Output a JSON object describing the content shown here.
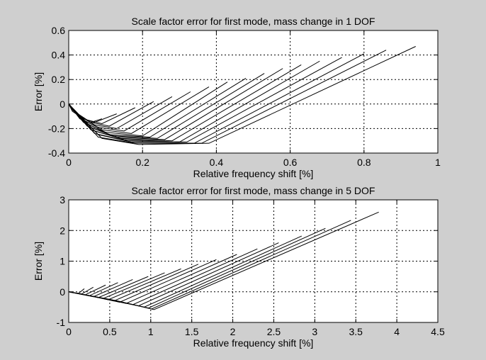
{
  "chart_data": [
    {
      "type": "line",
      "title": "Scale factor error for first mode, mass change in 1 DOF",
      "xlabel": "Relative frequency shift [%]",
      "ylabel": "Error [%]",
      "xlim": [
        0,
        1
      ],
      "ylim": [
        -0.4,
        0.6
      ],
      "xticks": [
        0,
        0.2,
        0.4,
        0.6,
        0.8,
        1
      ],
      "yticks": [
        -0.4,
        -0.2,
        0,
        0.2,
        0.4,
        0.6
      ],
      "grid": true,
      "curve_count": 17,
      "series_points": [
        [
          [
            0,
            0
          ],
          [
            0.01,
            -0.05
          ],
          [
            0.03,
            -0.1
          ],
          [
            0.06,
            -0.15
          ],
          [
            0.09,
            -0.12
          ]
        ],
        [
          [
            0,
            0
          ],
          [
            0.01,
            -0.06
          ],
          [
            0.04,
            -0.12
          ],
          [
            0.07,
            -0.15
          ],
          [
            0.13,
            -0.08
          ]
        ],
        [
          [
            0,
            0
          ],
          [
            0.02,
            -0.07
          ],
          [
            0.05,
            -0.13
          ],
          [
            0.09,
            -0.16
          ],
          [
            0.18,
            -0.03
          ]
        ],
        [
          [
            0,
            0
          ],
          [
            0.02,
            -0.08
          ],
          [
            0.06,
            -0.15
          ],
          [
            0.11,
            -0.18
          ],
          [
            0.23,
            0.02
          ]
        ],
        [
          [
            0,
            0
          ],
          [
            0.03,
            -0.1
          ],
          [
            0.07,
            -0.17
          ],
          [
            0.13,
            -0.2
          ],
          [
            0.28,
            0.06
          ]
        ],
        [
          [
            0,
            0
          ],
          [
            0.03,
            -0.12
          ],
          [
            0.08,
            -0.19
          ],
          [
            0.15,
            -0.22
          ],
          [
            0.33,
            0.1
          ]
        ],
        [
          [
            0,
            0
          ],
          [
            0.04,
            -0.13
          ],
          [
            0.09,
            -0.21
          ],
          [
            0.17,
            -0.24
          ],
          [
            0.38,
            0.14
          ]
        ],
        [
          [
            0,
            0
          ],
          [
            0.04,
            -0.15
          ],
          [
            0.1,
            -0.23
          ],
          [
            0.2,
            -0.26
          ],
          [
            0.43,
            0.18
          ]
        ],
        [
          [
            0,
            0
          ],
          [
            0.05,
            -0.16
          ],
          [
            0.11,
            -0.25
          ],
          [
            0.22,
            -0.27
          ],
          [
            0.48,
            0.21
          ]
        ],
        [
          [
            0,
            0
          ],
          [
            0.05,
            -0.18
          ],
          [
            0.12,
            -0.26
          ],
          [
            0.24,
            -0.28
          ],
          [
            0.53,
            0.25
          ]
        ],
        [
          [
            0,
            0
          ],
          [
            0.06,
            -0.19
          ],
          [
            0.13,
            -0.27
          ],
          [
            0.26,
            -0.29
          ],
          [
            0.58,
            0.29
          ]
        ],
        [
          [
            0,
            0
          ],
          [
            0.06,
            -0.21
          ],
          [
            0.14,
            -0.28
          ],
          [
            0.28,
            -0.3
          ],
          [
            0.63,
            0.32
          ]
        ],
        [
          [
            0,
            0
          ],
          [
            0.07,
            -0.22
          ],
          [
            0.15,
            -0.29
          ],
          [
            0.3,
            -0.31
          ],
          [
            0.68,
            0.35
          ]
        ],
        [
          [
            0,
            0
          ],
          [
            0.07,
            -0.24
          ],
          [
            0.16,
            -0.3
          ],
          [
            0.32,
            -0.31
          ],
          [
            0.74,
            0.38
          ]
        ],
        [
          [
            0,
            0
          ],
          [
            0.08,
            -0.25
          ],
          [
            0.17,
            -0.31
          ],
          [
            0.34,
            -0.32
          ],
          [
            0.8,
            0.41
          ]
        ],
        [
          [
            0,
            0
          ],
          [
            0.08,
            -0.27
          ],
          [
            0.18,
            -0.32
          ],
          [
            0.36,
            -0.32
          ],
          [
            0.86,
            0.44
          ]
        ],
        [
          [
            0,
            0
          ],
          [
            0.09,
            -0.28
          ],
          [
            0.19,
            -0.33
          ],
          [
            0.38,
            -0.32
          ],
          [
            0.94,
            0.47
          ]
        ]
      ]
    },
    {
      "type": "line",
      "title": "Scale factor error for first mode, mass change in 5 DOF",
      "xlabel": "Relative frequency shift [%]",
      "ylabel": "Error [%]",
      "xlim": [
        0,
        4.5
      ],
      "ylim": [
        -1,
        3
      ],
      "xticks": [
        0,
        0.5,
        1,
        1.5,
        2,
        2.5,
        3,
        3.5,
        4,
        4.5
      ],
      "yticks": [
        -1,
        0,
        1,
        2,
        3
      ],
      "grid": true,
      "curve_count": 17,
      "series_points": [
        [
          [
            0,
            0
          ],
          [
            0.06,
            -0.03
          ],
          [
            0.12,
            -0.05
          ],
          [
            0.19,
            0.1
          ]
        ],
        [
          [
            0,
            0
          ],
          [
            0.08,
            -0.04
          ],
          [
            0.16,
            -0.07
          ],
          [
            0.3,
            0.15
          ]
        ],
        [
          [
            0,
            0
          ],
          [
            0.1,
            -0.05
          ],
          [
            0.2,
            -0.1
          ],
          [
            0.45,
            0.22
          ]
        ],
        [
          [
            0,
            0
          ],
          [
            0.12,
            -0.06
          ],
          [
            0.25,
            -0.13
          ],
          [
            0.6,
            0.3
          ]
        ],
        [
          [
            0,
            0
          ],
          [
            0.15,
            -0.08
          ],
          [
            0.3,
            -0.16
          ],
          [
            0.78,
            0.4
          ]
        ],
        [
          [
            0,
            0
          ],
          [
            0.18,
            -0.09
          ],
          [
            0.36,
            -0.19
          ],
          [
            0.97,
            0.5
          ]
        ],
        [
          [
            0,
            0
          ],
          [
            0.21,
            -0.11
          ],
          [
            0.42,
            -0.22
          ],
          [
            1.17,
            0.62
          ]
        ],
        [
          [
            0,
            0
          ],
          [
            0.24,
            -0.12
          ],
          [
            0.48,
            -0.26
          ],
          [
            1.37,
            0.75
          ]
        ],
        [
          [
            0,
            0
          ],
          [
            0.28,
            -0.14
          ],
          [
            0.55,
            -0.3
          ],
          [
            1.58,
            0.9
          ]
        ],
        [
          [
            0,
            0
          ],
          [
            0.32,
            -0.16
          ],
          [
            0.62,
            -0.34
          ],
          [
            1.8,
            1.05
          ]
        ],
        [
          [
            0,
            0
          ],
          [
            0.36,
            -0.18
          ],
          [
            0.7,
            -0.38
          ],
          [
            2.05,
            1.22
          ]
        ],
        [
          [
            0,
            0
          ],
          [
            0.4,
            -0.2
          ],
          [
            0.78,
            -0.42
          ],
          [
            2.3,
            1.4
          ]
        ],
        [
          [
            0,
            0
          ],
          [
            0.44,
            -0.22
          ],
          [
            0.85,
            -0.46
          ],
          [
            2.56,
            1.6
          ]
        ],
        [
          [
            0,
            0
          ],
          [
            0.48,
            -0.24
          ],
          [
            0.92,
            -0.5
          ],
          [
            2.84,
            1.82
          ]
        ],
        [
          [
            0,
            0
          ],
          [
            0.52,
            -0.26
          ],
          [
            0.97,
            -0.53
          ],
          [
            3.13,
            2.07
          ]
        ],
        [
          [
            0,
            0
          ],
          [
            0.56,
            -0.28
          ],
          [
            1.01,
            -0.56
          ],
          [
            3.44,
            2.33
          ]
        ],
        [
          [
            0,
            0
          ],
          [
            0.6,
            -0.3
          ],
          [
            1.04,
            -0.58
          ],
          [
            3.78,
            2.6
          ]
        ]
      ]
    }
  ]
}
